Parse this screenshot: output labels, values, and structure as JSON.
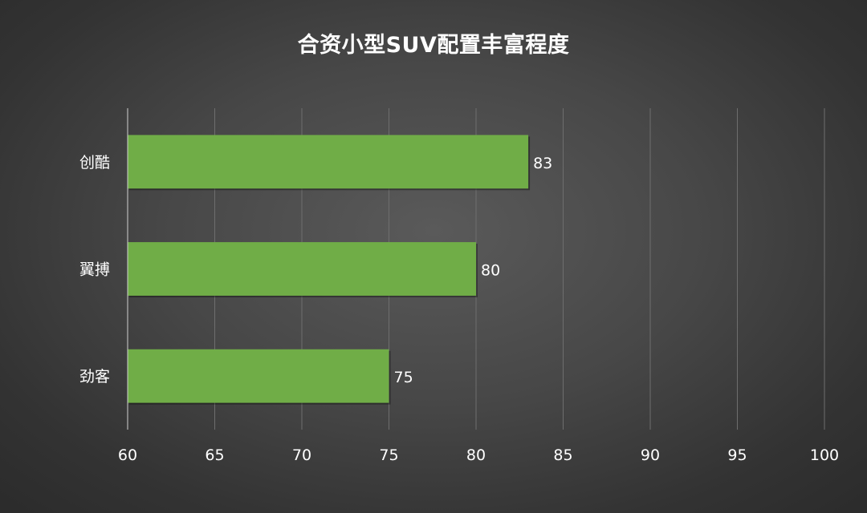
{
  "chart_data": {
    "type": "bar",
    "orientation": "horizontal",
    "title": "合资小型SUV配置丰富程度",
    "categories": [
      "创酷",
      "翼搏",
      "劲客"
    ],
    "values": [
      83,
      80,
      75
    ],
    "xlim": [
      60,
      100
    ],
    "xticks": [
      60,
      65,
      70,
      75,
      80,
      85,
      90,
      95,
      100
    ],
    "grid": true,
    "legend": "none",
    "bar_color": "#70ad47",
    "text_color": "#ffffff",
    "grid_color": "#6e6e6e"
  }
}
